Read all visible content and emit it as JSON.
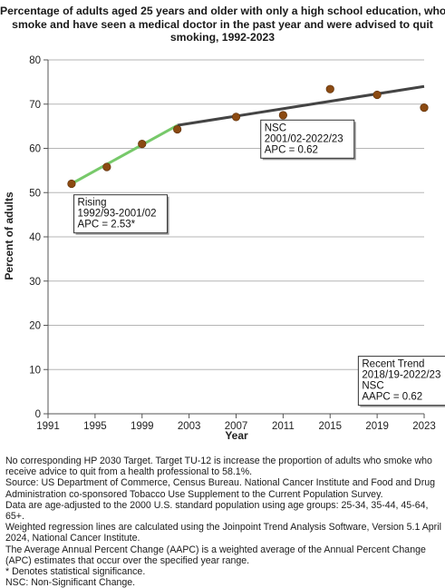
{
  "title_lines": [
    "Percentage of  adults aged 25 years and older with only a high school education, who",
    "smoke and have seen a medical doctor in the past year and were advised to quit",
    "smoking, 1992-2023"
  ],
  "footnotes": [
    "No corresponding HP 2030 Target. Target TU-12 is increase the proportion of adults who smoke who receive advice to quit from a health professional to 58.1%.",
    "Source: US Department of Commerce, Census Bureau. National Cancer Institute and Food and Drug Administration co-sponsored Tobacco Use Supplement to the Current Population Survey.",
    "Data are age-adjusted to the 2000 U.S. standard population using age groups: 25-34, 35-44, 45-64, 65+.",
    "Weighted regression lines are calculated using the Joinpoint Trend Analysis Software, Version 5.1 April 2024, National Cancer Institute.",
    "The Average Annual Percent Change (AAPC) is a weighted average of the Annual Percent Change (APC) estimates that occur over the specified year range.",
    "* Denotes statistical significance.",
    "NSC: Non-Significant Change."
  ],
  "colors": {
    "points": "#8b4a12",
    "rising_line": "#77c96a",
    "nsc_line": "#444444",
    "grid": "#b5b5b5"
  },
  "chart_data": {
    "type": "scatter",
    "xlabel": "Year",
    "ylabel": "Percent of adults",
    "xlim": [
      1991,
      2023
    ],
    "ylim": [
      0,
      80
    ],
    "xticks": [
      1991,
      1995,
      1999,
      2003,
      2007,
      2011,
      2015,
      2019,
      2023
    ],
    "yticks": [
      0,
      10,
      20,
      30,
      40,
      50,
      60,
      70,
      80
    ],
    "grid": true,
    "points": [
      {
        "x": 1993,
        "y": 52.0
      },
      {
        "x": 1996,
        "y": 55.8
      },
      {
        "x": 1999,
        "y": 61.0
      },
      {
        "x": 2002,
        "y": 64.3
      },
      {
        "x": 2007,
        "y": 67.1
      },
      {
        "x": 2011,
        "y": 67.5
      },
      {
        "x": 2015,
        "y": 73.4
      },
      {
        "x": 2019,
        "y": 72.1
      },
      {
        "x": 2023,
        "y": 69.2
      }
    ],
    "trend_segments": [
      {
        "x0": 1993,
        "y0": 52.0,
        "x1": 2002,
        "y1": 65.2,
        "color": "#77c96a"
      },
      {
        "x0": 2002,
        "y0": 65.2,
        "x1": 2023,
        "y1": 74.0,
        "color": "#444444"
      }
    ],
    "annotations": [
      {
        "lines": [
          "Rising",
          "1992/93-2001/02",
          "APC =  2.53*"
        ],
        "anchor_x": 1993.2,
        "anchor_y": 49.5
      },
      {
        "lines": [
          "NSC",
          "2001/02-2022/23",
          "APC =  0.62"
        ],
        "anchor_x": 2009.1,
        "anchor_y": 66.4
      },
      {
        "lines": [
          "Recent Trend",
          "2018/19-2022/23",
          "NSC",
          "AAPC =  0.62"
        ],
        "anchor_x": 2017.4,
        "anchor_y": 13.0
      }
    ]
  }
}
